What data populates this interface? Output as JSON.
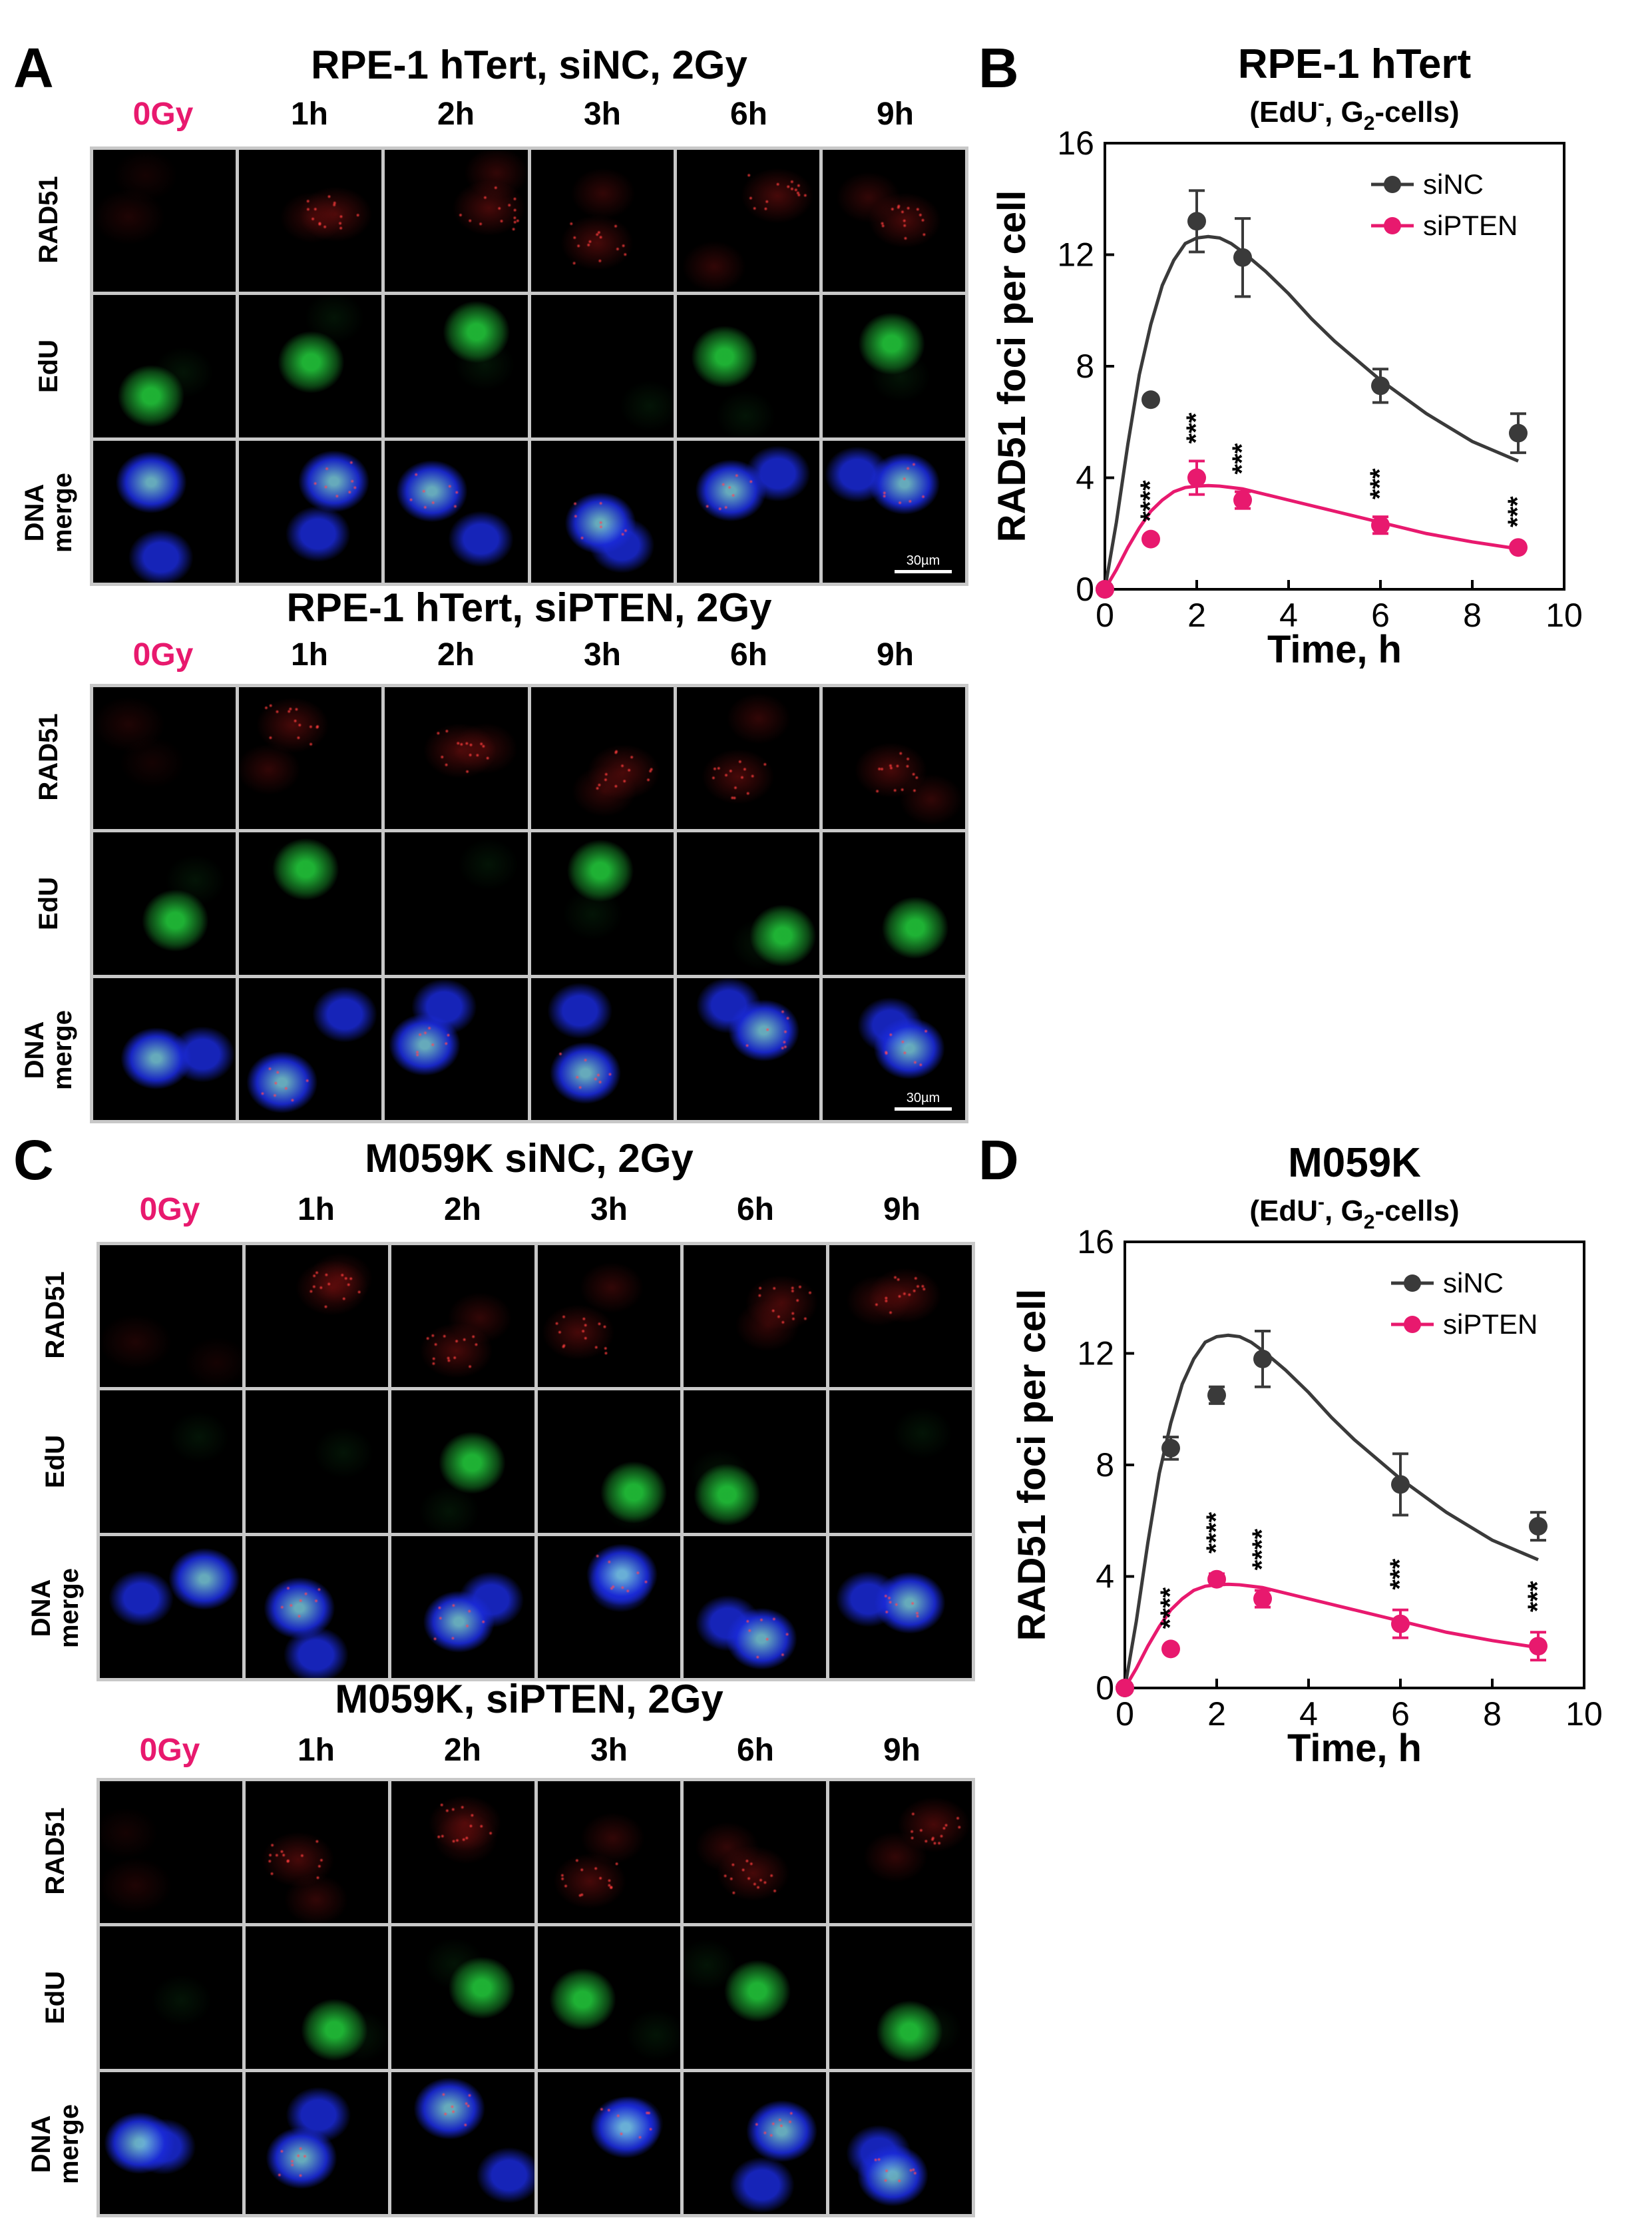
{
  "panels": [
    {
      "letter": "A",
      "title": "RPE-1 hTert, siNC, 2Gy",
      "sub_title": "RPE-1 hTert, siPTEN, 2Gy"
    },
    {
      "letter": "B"
    },
    {
      "letter": "C",
      "title": "M059K siNC, 2Gy",
      "sub_title": "M059K, siPTEN, 2Gy"
    },
    {
      "letter": "D"
    }
  ],
  "columns": [
    "0Gy",
    "1h",
    "2h",
    "3h",
    "6h",
    "9h"
  ],
  "rows": [
    {
      "label": "RAD51"
    },
    {
      "label": "EdU"
    },
    {
      "label": "DNA\nmerge"
    }
  ],
  "scale_bar_label": "30µm",
  "colors": {
    "zero_label": "#e8196e",
    "siNC": "#3a3a3a",
    "siPTEN": "#e8196e",
    "rad51_stain": "#ff2020",
    "edu_stain": "#22c43a",
    "dna_stain": "#1a2ad8"
  },
  "chart_data": [
    {
      "type": "line",
      "title": "RPE-1 hTert",
      "subtitle_parts": [
        "(EdU",
        "-",
        ", G",
        "2",
        "-cells)"
      ],
      "xlabel": "Time, h",
      "ylabel": "RAD51 foci per cell",
      "xlim": [
        0,
        10
      ],
      "ylim": [
        0,
        16
      ],
      "xticks": [
        0,
        2,
        4,
        6,
        8,
        10
      ],
      "yticks": [
        0,
        4,
        8,
        12,
        16
      ],
      "legend_position": "top-right",
      "series": [
        {
          "name": "siNC",
          "color": "#3a3a3a",
          "x": [
            0,
            1,
            2,
            3,
            6,
            9
          ],
          "y": [
            0,
            6.8,
            13.2,
            11.9,
            7.3,
            5.6
          ],
          "err": [
            0,
            0,
            1.1,
            1.4,
            0.6,
            0.7
          ]
        },
        {
          "name": "siPTEN",
          "color": "#e8196e",
          "x": [
            0,
            1,
            2,
            3,
            6,
            9
          ],
          "y": [
            0,
            1.8,
            4.0,
            3.2,
            2.3,
            1.5
          ],
          "err": [
            0,
            0.1,
            0.6,
            0.3,
            0.3,
            0.1
          ]
        }
      ],
      "fit_curves": [
        {
          "x": [
            0,
            0.25,
            0.5,
            0.75,
            1,
            1.25,
            1.5,
            1.75,
            2,
            2.25,
            2.5,
            2.75,
            3,
            3.5,
            4,
            4.5,
            5,
            6,
            7,
            8,
            9
          ],
          "y": [
            0,
            2.4,
            5.2,
            7.7,
            9.5,
            10.9,
            11.8,
            12.4,
            12.6,
            12.65,
            12.6,
            12.4,
            12.1,
            11.4,
            10.6,
            9.7,
            8.9,
            7.5,
            6.3,
            5.3,
            4.6
          ]
        },
        {
          "x": [
            0,
            0.25,
            0.5,
            0.75,
            1,
            1.25,
            1.5,
            1.75,
            2,
            2.25,
            2.5,
            2.75,
            3,
            3.5,
            4,
            4.5,
            5,
            6,
            7,
            8,
            9
          ],
          "y": [
            0,
            0.7,
            1.5,
            2.2,
            2.8,
            3.2,
            3.5,
            3.65,
            3.7,
            3.72,
            3.7,
            3.65,
            3.6,
            3.4,
            3.2,
            3.0,
            2.8,
            2.4,
            2.0,
            1.7,
            1.45
          ]
        }
      ],
      "annotations": [
        {
          "x": 1,
          "y": 1.8,
          "text": "****"
        },
        {
          "x": 2,
          "y": 4.6,
          "text": "***"
        },
        {
          "x": 3,
          "y": 3.5,
          "text": "***"
        },
        {
          "x": 6,
          "y": 2.6,
          "text": "***"
        },
        {
          "x": 9,
          "y": 1.6,
          "text": "***"
        }
      ]
    },
    {
      "type": "line",
      "title": "M059K",
      "subtitle_parts": [
        "(EdU",
        "-",
        ", G",
        "2",
        "-cells)"
      ],
      "xlabel": "Time, h",
      "ylabel": "RAD51 foci per cell",
      "xlim": [
        0,
        10
      ],
      "ylim": [
        0,
        16
      ],
      "xticks": [
        0,
        2,
        4,
        6,
        8,
        10
      ],
      "yticks": [
        0,
        4,
        8,
        12,
        16
      ],
      "legend_position": "top-right",
      "series": [
        {
          "name": "siNC",
          "color": "#3a3a3a",
          "x": [
            0,
            1,
            2,
            3,
            6,
            9
          ],
          "y": [
            0,
            8.6,
            10.5,
            11.8,
            7.3,
            5.8
          ],
          "err": [
            0,
            0.4,
            0.3,
            1.0,
            1.1,
            0.5
          ]
        },
        {
          "name": "siPTEN",
          "color": "#e8196e",
          "x": [
            0,
            1,
            2,
            3,
            6,
            9
          ],
          "y": [
            0,
            1.4,
            3.9,
            3.2,
            2.3,
            1.5
          ],
          "err": [
            0,
            0.1,
            0.2,
            0.3,
            0.5,
            0.5
          ]
        }
      ],
      "fit_curves": [
        {
          "x": [
            0,
            0.25,
            0.5,
            0.75,
            1,
            1.25,
            1.5,
            1.75,
            2,
            2.25,
            2.5,
            2.75,
            3,
            3.5,
            4,
            4.5,
            5,
            6,
            7,
            8,
            9
          ],
          "y": [
            0,
            2.4,
            5.2,
            7.7,
            9.5,
            10.9,
            11.8,
            12.4,
            12.6,
            12.65,
            12.6,
            12.4,
            12.1,
            11.4,
            10.6,
            9.7,
            8.9,
            7.5,
            6.3,
            5.3,
            4.6
          ]
        },
        {
          "x": [
            0,
            0.25,
            0.5,
            0.75,
            1,
            1.25,
            1.5,
            1.75,
            2,
            2.25,
            2.5,
            2.75,
            3,
            3.5,
            4,
            4.5,
            5,
            6,
            7,
            8,
            9
          ],
          "y": [
            0,
            0.7,
            1.5,
            2.2,
            2.8,
            3.2,
            3.5,
            3.65,
            3.7,
            3.72,
            3.7,
            3.65,
            3.6,
            3.4,
            3.2,
            3.0,
            2.8,
            2.4,
            2.0,
            1.7,
            1.45
          ]
        }
      ],
      "annotations": [
        {
          "x": 1,
          "y": 1.5,
          "text": "****"
        },
        {
          "x": 2,
          "y": 4.2,
          "text": "****"
        },
        {
          "x": 3,
          "y": 3.6,
          "text": "****"
        },
        {
          "x": 6,
          "y": 2.9,
          "text": "***"
        },
        {
          "x": 9,
          "y": 2.1,
          "text": "***"
        }
      ]
    }
  ]
}
